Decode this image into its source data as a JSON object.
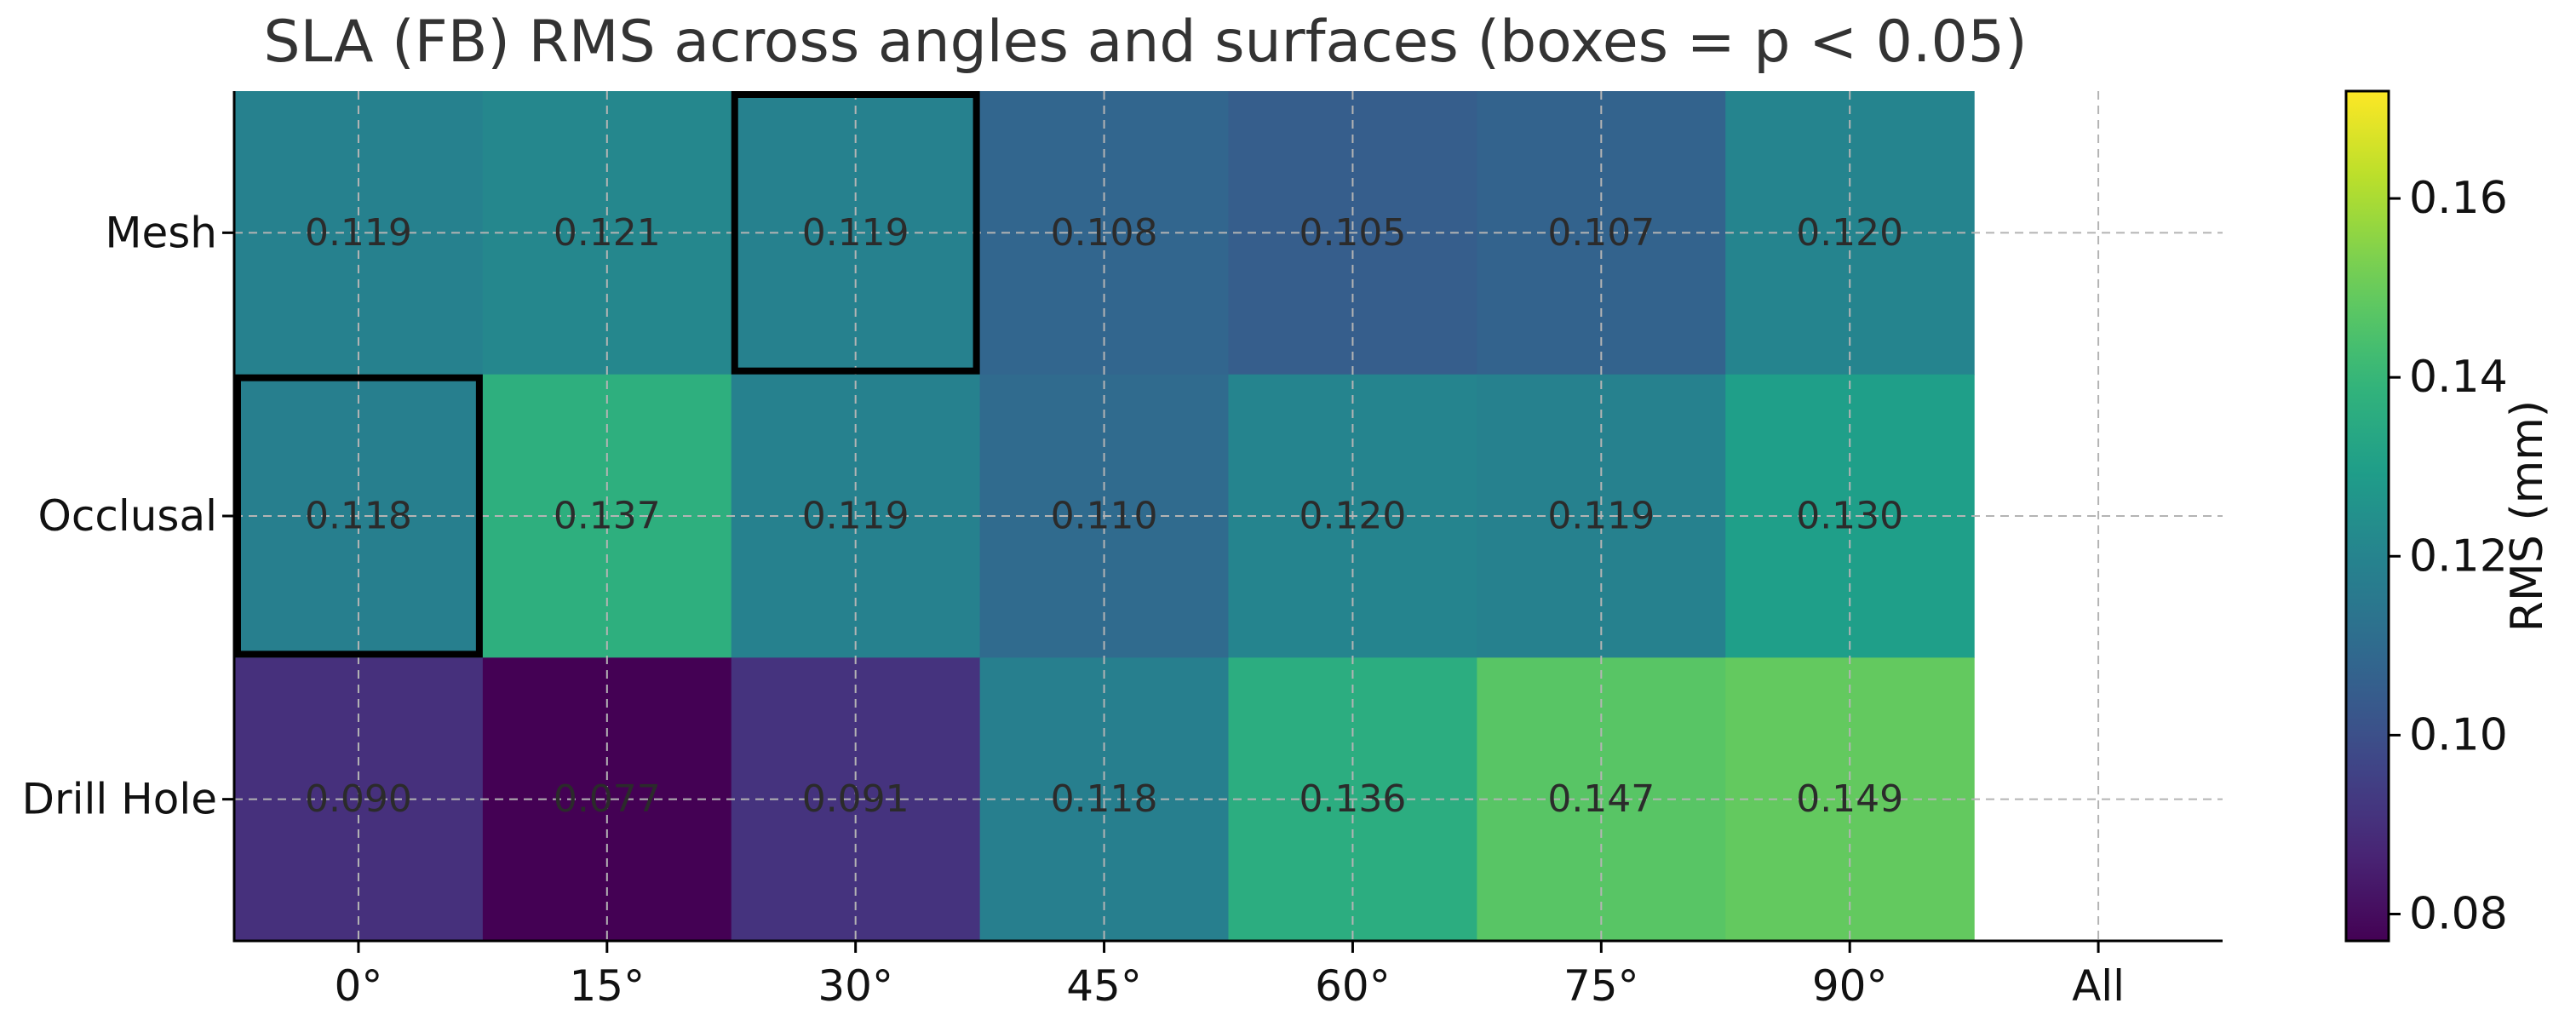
{
  "chart_data": {
    "type": "heatmap",
    "title": "SLA (FB) RMS across angles and surfaces (boxes = p < 0.05)",
    "x_categories": [
      "0°",
      "15°",
      "30°",
      "45°",
      "60°",
      "75°",
      "90°",
      "All"
    ],
    "y_categories": [
      "Mesh",
      "Occlusal",
      "Drill Hole"
    ],
    "values": [
      [
        0.119,
        0.121,
        0.119,
        0.108,
        0.105,
        0.107,
        0.12,
        null
      ],
      [
        0.118,
        0.137,
        0.119,
        0.11,
        0.12,
        0.119,
        0.13,
        null
      ],
      [
        0.09,
        0.077,
        0.091,
        0.118,
        0.136,
        0.147,
        0.149,
        null
      ]
    ],
    "value_labels": [
      [
        "0.119",
        "0.121",
        "0.119",
        "0.108",
        "0.105",
        "0.107",
        "0.120",
        ""
      ],
      [
        "0.118",
        "0.137",
        "0.119",
        "0.110",
        "0.120",
        "0.119",
        "0.130",
        ""
      ],
      [
        "0.090",
        "0.077",
        "0.091",
        "0.118",
        "0.136",
        "0.147",
        "0.149",
        ""
      ]
    ],
    "significant_cells": [
      {
        "row": "Mesh",
        "col": "30°"
      },
      {
        "row": "Occlusal",
        "col": "0°"
      }
    ],
    "colormap": "viridis",
    "colorbar": {
      "label": "RMS (mm)",
      "range": [
        0.077,
        0.172
      ],
      "ticks": [
        0.08,
        0.1,
        0.12,
        0.14,
        0.16
      ],
      "tick_labels": [
        "0.08",
        "0.10",
        "0.12",
        "0.14",
        "0.16"
      ]
    },
    "grid": true
  }
}
